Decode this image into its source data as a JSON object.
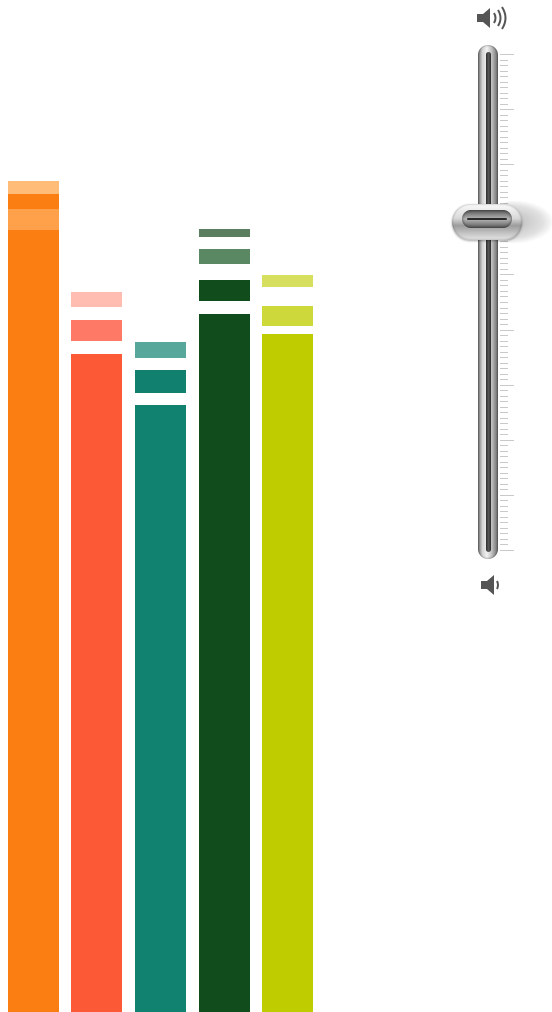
{
  "equalizer": {
    "bars": [
      {
        "level": 0.82,
        "peak": 0.02,
        "color": "#fa7e12",
        "peak_colors": [
          "#ffbb78",
          "#ffa04a"
        ]
      },
      {
        "level": 0.65,
        "peak": 0.02,
        "color": "#fc5937",
        "peak_colors": [
          "#ffbcb0",
          "#ff7a66"
        ]
      },
      {
        "level": 0.6,
        "peak": 0.02,
        "color": "#118270",
        "peak_colors": [
          "#58a79b",
          "#11806f"
        ]
      },
      {
        "level": 0.69,
        "peak": 0.02,
        "color": "#104c1c",
        "peak_colors": [
          "#5a7f5e",
          "#5a8862",
          "#104c1c"
        ]
      },
      {
        "level": 0.67,
        "peak": 0.02,
        "color": "#bfcc00",
        "peak_colors": [
          "#d7e05e",
          "#cdd83b"
        ]
      }
    ]
  },
  "volume": {
    "max_icon": "speaker-loud-icon",
    "min_icon": "speaker-quiet-icon",
    "level": 0.66,
    "track_color": "#bdbdbd",
    "thumb_color": "#d8d8d8"
  }
}
